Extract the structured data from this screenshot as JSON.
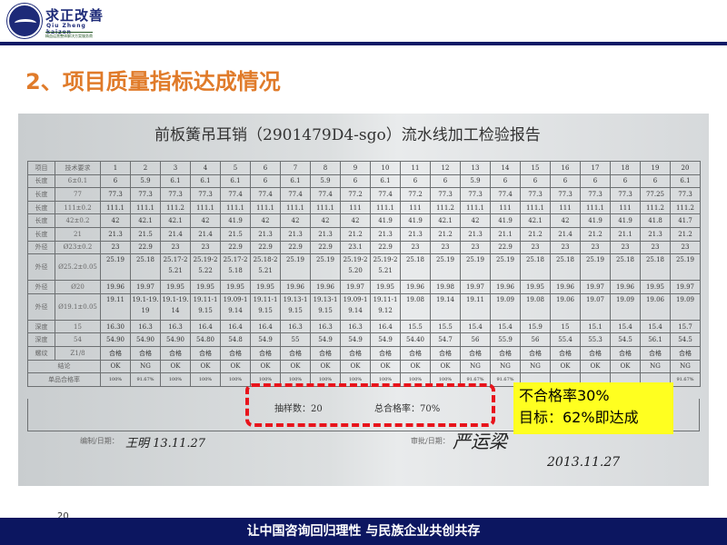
{
  "logo": {
    "name": "求正改善",
    "en": "Qiu Zheng kaizen",
    "sub": "精益运营整体解决方案服务商"
  },
  "slide_title": "2、项目质量指标达成情况",
  "document": {
    "title": "前板簧吊耳销（2901479D4-sgo）流水线加工检验报告",
    "header": [
      "项目",
      "技术要求",
      "1",
      "2",
      "3",
      "4",
      "5",
      "6",
      "7",
      "8",
      "9",
      "10",
      "11",
      "12",
      "13",
      "14",
      "15",
      "16",
      "17",
      "18",
      "19",
      "20"
    ],
    "rows": [
      {
        "label": "长度",
        "spec": "6±0.1",
        "values": [
          "6",
          "5.9",
          "6.1",
          "6.1",
          "6.1",
          "6",
          "6.1",
          "5.9",
          "6",
          "6.1",
          "6",
          "6",
          "5.9",
          "6",
          "6",
          "6",
          "6",
          "6",
          "6",
          "6.1"
        ]
      },
      {
        "label": "长度",
        "spec": "77",
        "values": [
          "77.3",
          "77.3",
          "77.3",
          "77.3",
          "77.4",
          "77.4",
          "77.4",
          "77.4",
          "77.2",
          "77.4",
          "77.2",
          "77.3",
          "77.3",
          "77.4",
          "77.3",
          "77.3",
          "77.3",
          "77.3",
          "77.25",
          "77.3"
        ]
      },
      {
        "label": "长度",
        "spec": "111±0.2",
        "values": [
          "111.1",
          "111.1",
          "111.2",
          "111.1",
          "111.1",
          "111.1",
          "111.1",
          "111.1",
          "111",
          "111.1",
          "111",
          "111.2",
          "111.1",
          "111",
          "111.1",
          "111",
          "111.1",
          "111",
          "111.2",
          "111.2"
        ]
      },
      {
        "label": "长度",
        "spec": "42±0.2",
        "values": [
          "42",
          "42.1",
          "42.1",
          "42",
          "41.9",
          "42",
          "42",
          "42",
          "42",
          "41.9",
          "41.9",
          "42.1",
          "42",
          "41.9",
          "42.1",
          "42",
          "41.9",
          "41.9",
          "41.8",
          "41.7"
        ]
      },
      {
        "label": "长度",
        "spec": "21",
        "values": [
          "21.3",
          "21.5",
          "21.4",
          "21.4",
          "21.5",
          "21.3",
          "21.3",
          "21.3",
          "21.2",
          "21.3",
          "21.3",
          "21.2",
          "21.3",
          "21.1",
          "21.2",
          "21.4",
          "21.2",
          "21.1",
          "21.3",
          "21.2"
        ]
      },
      {
        "label": "外径",
        "spec": "Ø23±0.2",
        "values": [
          "23",
          "22.9",
          "23",
          "23",
          "22.9",
          "22.9",
          "22.9",
          "22.9",
          "23.1",
          "22.9",
          "23",
          "23",
          "23",
          "22.9",
          "23",
          "23",
          "23",
          "23",
          "23",
          "23"
        ]
      },
      {
        "label": "外径",
        "spec": "Ø25.2±0.05",
        "values": [
          "25.19",
          "25.18",
          "25.17-25.21",
          "25.19-25.22",
          "25.17-25.18",
          "25.18-25.21",
          "25.19",
          "25.19",
          "25.19-25.20",
          "25.19-25.21",
          "25.18",
          "25.19",
          "25.19",
          "25.19",
          "25.18",
          "25.18",
          "25.19",
          "25.18",
          "25.18",
          "25.19"
        ]
      },
      {
        "label": "外径",
        "spec": "Ø20",
        "values": [
          "19.96",
          "19.97",
          "19.95",
          "19.95",
          "19.95",
          "19.95",
          "19.96",
          "19.96",
          "19.97",
          "19.95",
          "19.96",
          "19.98",
          "19.97",
          "19.96",
          "19.95",
          "19.96",
          "19.97",
          "19.96",
          "19.95",
          "19.97"
        ]
      },
      {
        "label": "外径",
        "spec": "Ø19.1±0.05",
        "values": [
          "19.11",
          "19.1-19.19",
          "19.1-19.14",
          "19.11-19.15",
          "19.09-19.14",
          "19.11-19.15",
          "19.13-19.15",
          "19.13-19.15",
          "19.09-19.14",
          "19.11-19.12",
          "19.08",
          "19.14",
          "19.11",
          "19.09",
          "19.08",
          "19.06",
          "19.07",
          "19.09",
          "19.06",
          "19.09"
        ]
      },
      {
        "label": "深度",
        "spec": "15",
        "values": [
          "16.30",
          "16.3",
          "16.3",
          "16.4",
          "16.4",
          "16.4",
          "16.3",
          "16.3",
          "16.3",
          "16.4",
          "15.5",
          "15.5",
          "15.4",
          "15.4",
          "15.9",
          "15",
          "15.1",
          "15.4",
          "15.4",
          "15.7"
        ]
      },
      {
        "label": "深度",
        "spec": "54",
        "values": [
          "54.90",
          "54.90",
          "54.90",
          "54.80",
          "54.8",
          "54.9",
          "55",
          "54.9",
          "54.9",
          "54.9",
          "54.40",
          "54.7",
          "56",
          "55.9",
          "56",
          "55.4",
          "55.3",
          "54.5",
          "56.1",
          "54.5"
        ]
      },
      {
        "label": "螺纹",
        "spec": "Z1/8",
        "values": [
          "合格",
          "合格",
          "合格",
          "合格",
          "合格",
          "合格",
          "合格",
          "合格",
          "合格",
          "合格",
          "合格",
          "合格",
          "合格",
          "合格",
          "合格",
          "合格",
          "合格",
          "合格",
          "合格",
          "合格"
        ]
      }
    ],
    "conclusion": {
      "label": "结论",
      "values": [
        "OK",
        "NG",
        "OK",
        "OK",
        "OK",
        "OK",
        "OK",
        "OK",
        "OK",
        "OK",
        "OK",
        "OK",
        "NG",
        "NG",
        "NG",
        "OK",
        "OK",
        "OK",
        "NG",
        "NG"
      ]
    },
    "pass_rate": {
      "label": "单品合格率",
      "values": [
        "100%",
        "91.67%",
        "100%",
        "100%",
        "100%",
        "100%",
        "100%",
        "100%",
        "100%",
        "100%",
        "100%",
        "100%",
        "91.67%",
        "91.67%",
        "",
        "",
        "",
        "",
        "",
        "91.67%"
      ]
    },
    "sample_count": "抽样数：20",
    "total_pass": "总合格率：70%",
    "prepared_label": "编制/日期：",
    "prepared_sign": "王明 13.11.27",
    "approved_label": "审批/日期：",
    "approved_sign": "严运梁",
    "approved_date": "2013.11.27"
  },
  "note": {
    "line1": "不合格率30%",
    "line2": "目标：62%即达成"
  },
  "page_number": "20",
  "footer": "让中国咨询回归理性  与民族企业共创共存"
}
